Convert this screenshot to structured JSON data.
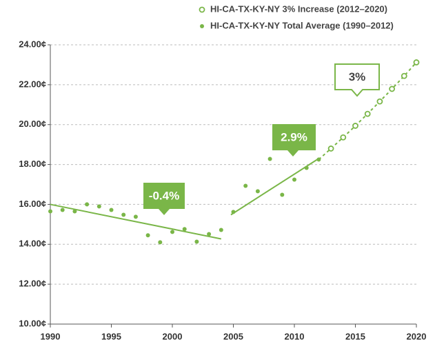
{
  "chart_data": {
    "type": "scatter",
    "series": [
      {
        "name": "HI-CA-TX-KY-NY 3% Increase (2012–2020)",
        "color": "#7ab648",
        "marker": "open",
        "line": "dashed",
        "x": [
          2013,
          2014,
          2015,
          2016,
          2017,
          2018,
          2019,
          2020
        ],
        "values": [
          18.8,
          19.36,
          19.94,
          20.54,
          21.16,
          21.79,
          22.44,
          23.12
        ]
      },
      {
        "name": "HI-CA-TX-KY-NY Total Average (1990–2012)",
        "color": "#7ab648",
        "marker": "filled",
        "x": [
          1990,
          1991,
          1992,
          1993,
          1994,
          1995,
          1996,
          1997,
          1998,
          1999,
          2000,
          2001,
          2002,
          2003,
          2004,
          2005,
          2006,
          2007,
          2008,
          2009,
          2010,
          2011,
          2012
        ],
        "values": [
          15.65,
          15.72,
          15.65,
          16.0,
          15.9,
          15.72,
          15.48,
          15.38,
          14.45,
          14.1,
          14.62,
          14.76,
          14.13,
          14.51,
          14.72,
          15.62,
          16.93,
          16.66,
          18.28,
          16.48,
          17.24,
          17.83,
          18.25
        ]
      }
    ],
    "trendlines": [
      {
        "x": [
          1990,
          2004
        ],
        "values": [
          16.0,
          14.27
        ]
      },
      {
        "x": [
          2004.8,
          2012
        ],
        "values": [
          15.48,
          18.3
        ]
      }
    ],
    "annotations": [
      "-0.4%",
      "2.9%",
      "3%"
    ],
    "xlim": [
      1990,
      2020
    ],
    "xticks": [
      1990,
      1995,
      2000,
      2005,
      2010,
      2015,
      2020
    ],
    "ylim": [
      10,
      24
    ],
    "yticks": [
      {
        "value": 10,
        "label": "10.00¢"
      },
      {
        "value": 12,
        "label": "12.00¢"
      },
      {
        "value": 14,
        "label": "14.00¢"
      },
      {
        "value": 16,
        "label": "16.00¢"
      },
      {
        "value": 18,
        "label": "18.00¢"
      },
      {
        "value": 20,
        "label": "20.00¢"
      },
      {
        "value": 22,
        "label": "22.00¢"
      },
      {
        "value": 24,
        "label": "24.00¢"
      }
    ],
    "grid": true,
    "legend": "top-right"
  }
}
